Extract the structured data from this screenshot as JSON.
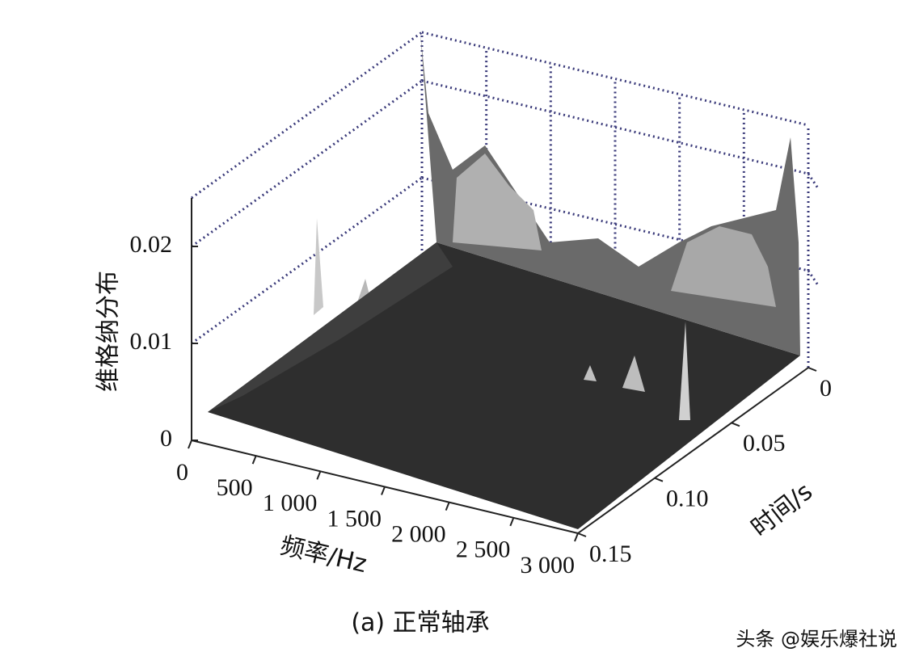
{
  "chart_data": {
    "type": "surface3d",
    "xlabel": "频率/Hz",
    "ylabel": "时间/s",
    "zlabel": "维格纳分布",
    "caption": "(a) 正常轴承",
    "watermark": "头条 @娱乐爆社说",
    "xlim": [
      0,
      3000
    ],
    "xticks": [
      0,
      500,
      {
        "value": 1000,
        "label": "1 000"
      },
      {
        "value": 1500,
        "label": "1 500"
      },
      {
        "value": 2000,
        "label": "2 000"
      },
      {
        "value": 2500,
        "label": "2 500"
      },
      {
        "value": 3000,
        "label": "3 000"
      }
    ],
    "ylim": [
      0,
      0.15
    ],
    "yticks": [
      0,
      0.05,
      {
        "value": 0.1,
        "label": "0.10"
      },
      0.15
    ],
    "zlim": [
      0,
      0.025
    ],
    "zticks": [
      0,
      0.01,
      0.02
    ],
    "grid": true
  }
}
